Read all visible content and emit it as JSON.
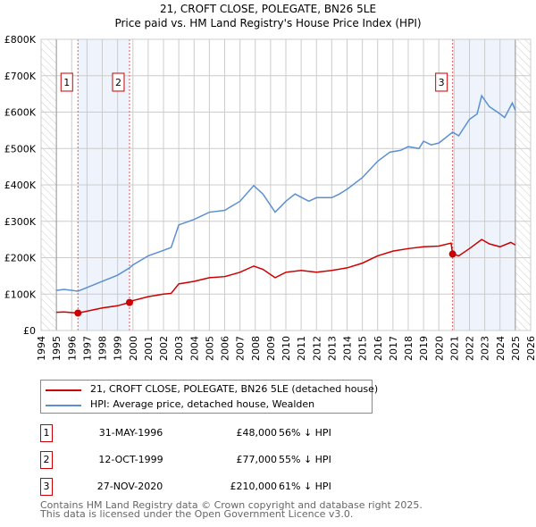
{
  "title": "21, CROFT CLOSE, POLEGATE, BN26 5LE",
  "subtitle": "Price paid vs. HM Land Registry's House Price Index (HPI)",
  "chart_data": {
    "type": "line",
    "title": "21, CROFT CLOSE, POLEGATE, BN26 5LE",
    "subtitle": "Price paid vs. HM Land Registry's House Price Index (HPI)",
    "xlim": [
      1994,
      2026
    ],
    "ylim": [
      0,
      800000
    ],
    "xticks": [
      1994,
      1995,
      1996,
      1997,
      1998,
      1999,
      2000,
      2001,
      2002,
      2003,
      2004,
      2005,
      2006,
      2007,
      2008,
      2009,
      2010,
      2011,
      2012,
      2013,
      2014,
      2015,
      2016,
      2017,
      2018,
      2019,
      2020,
      2021,
      2022,
      2023,
      2024,
      2025,
      2026
    ],
    "yticks": [
      {
        "v": 0,
        "label": "£0"
      },
      {
        "v": 100000,
        "label": "£100K"
      },
      {
        "v": 200000,
        "label": "£200K"
      },
      {
        "v": 300000,
        "label": "£300K"
      },
      {
        "v": 400000,
        "label": "£400K"
      },
      {
        "v": 500000,
        "label": "£500K"
      },
      {
        "v": 600000,
        "label": "£600K"
      },
      {
        "v": 700000,
        "label": "£700K"
      },
      {
        "v": 800000,
        "label": "£800K"
      }
    ],
    "grid": true,
    "data_range": [
      1995,
      2025
    ],
    "shaded": [
      [
        1996.41,
        1999.78
      ],
      [
        2020.9,
        2025
      ]
    ],
    "series": [
      {
        "name": "21, CROFT CLOSE, POLEGATE, BN26 5LE (detached house)",
        "color": "#cc0000",
        "x": [
          1995,
          1995.5,
          1996.41,
          1997,
          1998,
          1999,
          1999.78,
          2000,
          2001,
          2002,
          2002.5,
          2003,
          2004,
          2005,
          2006,
          2007,
          2007.9,
          2008.5,
          2009.3,
          2010,
          2011,
          2012,
          2013,
          2014,
          2015,
          2016,
          2017,
          2018,
          2019,
          2020,
          2020.8,
          2020.9,
          2021.3,
          2022,
          2022.8,
          2023.3,
          2024,
          2024.7,
          2025
        ],
        "y": [
          50000,
          51000,
          48000,
          53000,
          62000,
          68000,
          77000,
          82000,
          93000,
          100000,
          102000,
          128000,
          135000,
          145000,
          148000,
          160000,
          177000,
          168000,
          145000,
          160000,
          165000,
          160000,
          165000,
          172000,
          185000,
          205000,
          218000,
          225000,
          230000,
          232000,
          240000,
          210000,
          205000,
          225000,
          250000,
          238000,
          230000,
          242000,
          235000
        ]
      },
      {
        "name": "HPI: Average price, detached house, Wealden",
        "color": "#5b8fd4",
        "x": [
          1995,
          1995.5,
          1996.41,
          1997,
          1998,
          1999,
          1999.78,
          2000,
          2001,
          2002,
          2002.5,
          2003,
          2004,
          2005,
          2006,
          2007,
          2007.9,
          2008.5,
          2009.3,
          2010,
          2010.6,
          2011.5,
          2012,
          2013,
          2013.5,
          2014,
          2015,
          2016,
          2016.8,
          2017.5,
          2018,
          2018.7,
          2019,
          2019.5,
          2020,
          2020.9,
          2021.3,
          2022,
          2022.5,
          2022.8,
          2023.3,
          2024,
          2024.3,
          2024.8,
          2025
        ],
        "y": [
          110000,
          113000,
          108000,
          118000,
          135000,
          152000,
          172000,
          180000,
          205000,
          220000,
          228000,
          290000,
          305000,
          325000,
          330000,
          355000,
          398000,
          375000,
          325000,
          355000,
          375000,
          355000,
          365000,
          365000,
          375000,
          388000,
          420000,
          465000,
          490000,
          495000,
          505000,
          500000,
          520000,
          510000,
          515000,
          545000,
          535000,
          580000,
          595000,
          645000,
          615000,
          595000,
          585000,
          625000,
          605000
        ]
      }
    ],
    "sales": [
      {
        "n": "1",
        "x": 1996.41,
        "y": 48000,
        "date": "31-MAY-1996",
        "price": "£48,000",
        "hpi": "56% ↓ HPI"
      },
      {
        "n": "2",
        "x": 1999.78,
        "y": 77000,
        "date": "12-OCT-1999",
        "price": "£77,000",
        "hpi": "55% ↓ HPI"
      },
      {
        "n": "3",
        "x": 2020.9,
        "y": 210000,
        "date": "27-NOV-2020",
        "price": "£210,000",
        "hpi": "61% ↓ HPI"
      }
    ]
  },
  "footer": [
    "Contains HM Land Registry data © Crown copyright and database right 2025.",
    "This data is licensed under the Open Government Licence v3.0."
  ]
}
